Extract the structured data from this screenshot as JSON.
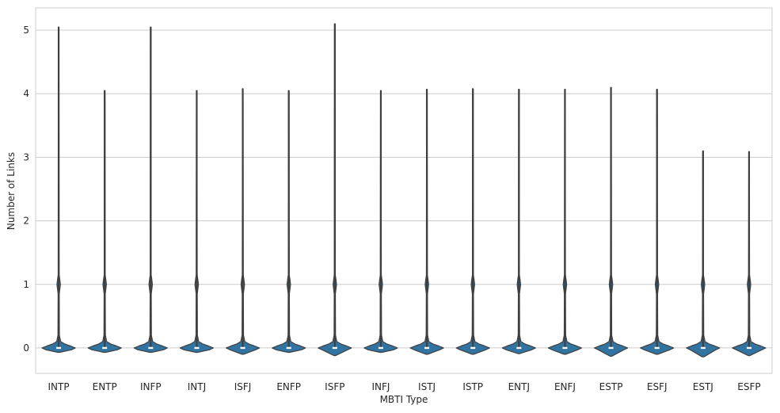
{
  "chart_data": {
    "type": "violin",
    "xlabel": "MBTI Type",
    "ylabel": "Number of Links",
    "categories": [
      "INTP",
      "ENTP",
      "INFP",
      "INTJ",
      "ISFJ",
      "ENFP",
      "ISFP",
      "INFJ",
      "ISTJ",
      "ISTP",
      "ENTJ",
      "ENFJ",
      "ESTP",
      "ESFJ",
      "ESTJ",
      "ESFP"
    ],
    "max_values": [
      5.05,
      4.05,
      5.05,
      4.05,
      4.08,
      4.05,
      5.1,
      4.05,
      4.07,
      4.08,
      4.07,
      4.07,
      4.1,
      4.07,
      3.1,
      3.09
    ],
    "min_values": [
      -0.07,
      -0.07,
      -0.07,
      -0.07,
      -0.1,
      -0.07,
      -0.12,
      -0.07,
      -0.1,
      -0.1,
      -0.09,
      -0.1,
      -0.13,
      -0.1,
      -0.14,
      -0.12
    ],
    "median": 0,
    "yticks": [
      "0",
      "1",
      "2",
      "3",
      "4",
      "5"
    ],
    "ylim": [
      -0.4,
      5.35
    ],
    "grid": "horizontal",
    "colors": {
      "violin": "#3274a1",
      "outline": "#3f3f3f",
      "grid": "#cccccc",
      "frame": "#cccccc"
    }
  }
}
